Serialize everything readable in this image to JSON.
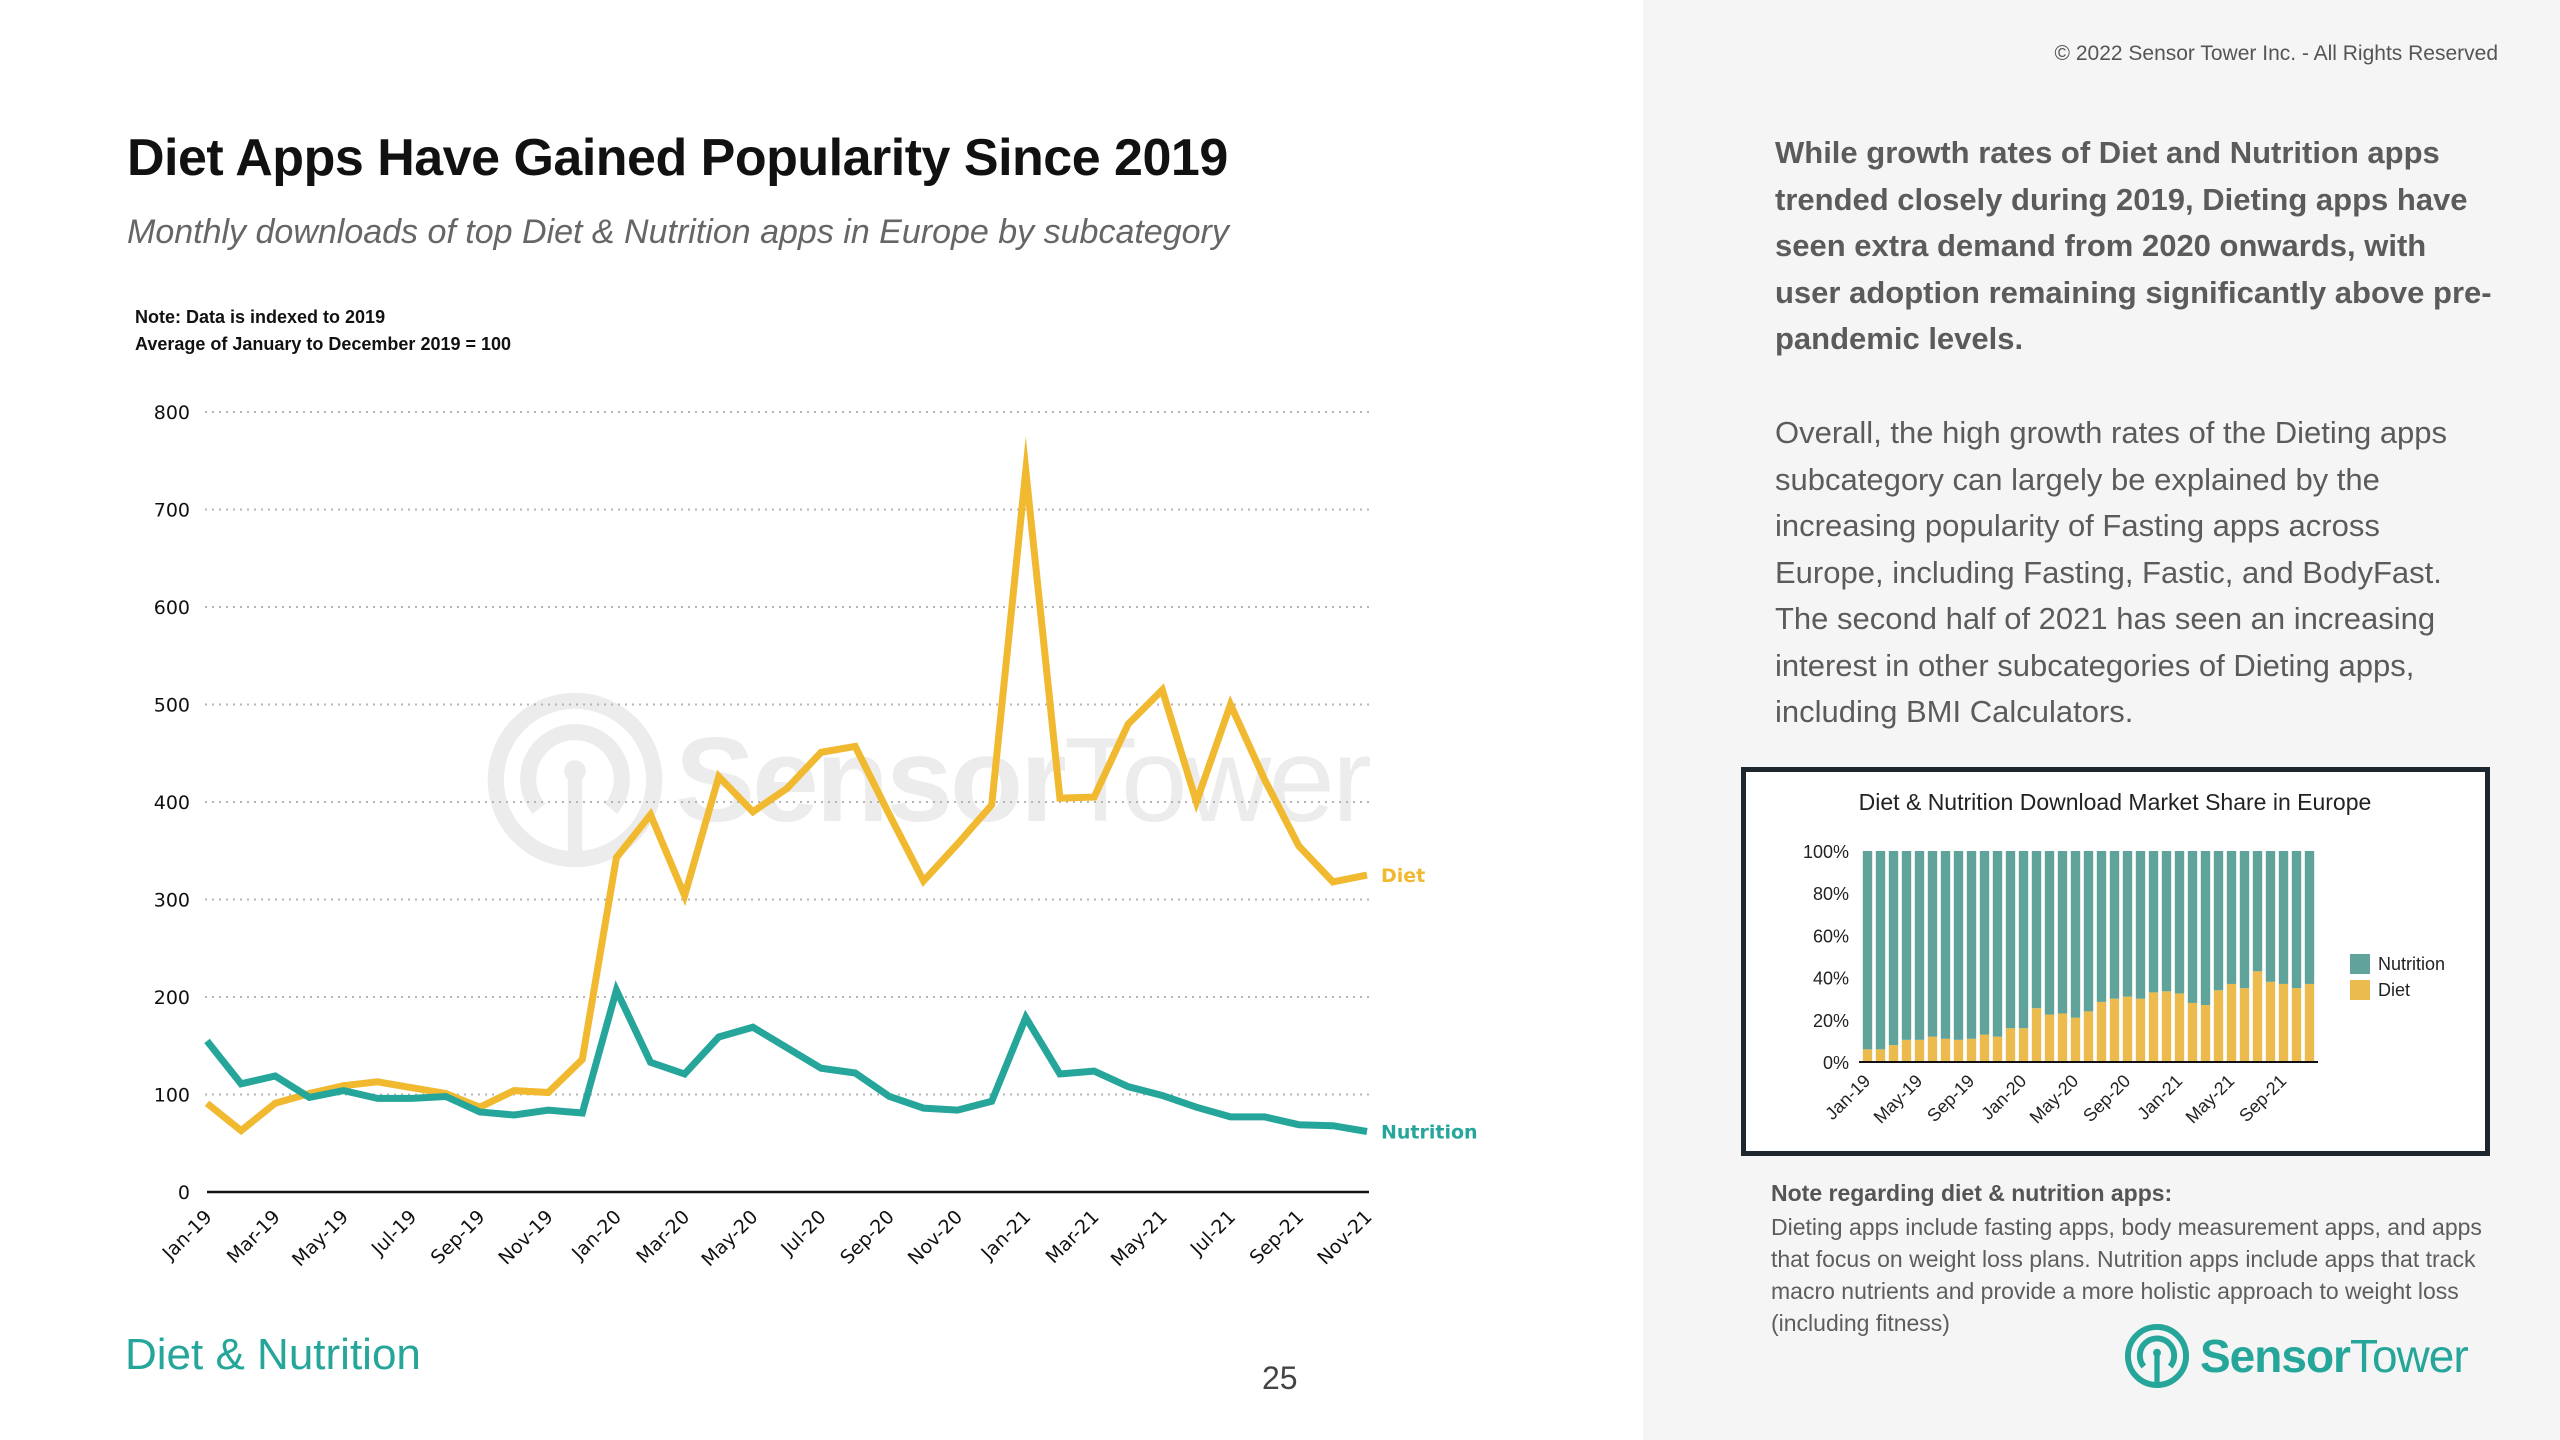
{
  "header": {
    "title": "Diet Apps Have Gained Popularity Since 2019",
    "subtitle": "Monthly downloads of top Diet & Nutrition apps in Europe by subcategory",
    "note_line1": "Note: Data is indexed to 2019",
    "note_line2": "Average of January to December 2019 = 100"
  },
  "footer": {
    "category": "Diet & Nutrition",
    "page_number": "25"
  },
  "right_panel": {
    "copyright": "© 2022 Sensor Tower Inc. - All Rights Reserved",
    "paragraph1": "While growth rates of Diet and Nutrition apps trended closely during 2019, Dieting apps have seen extra demand from 2020 onwards, with user adoption remaining significantly above pre-pandemic levels.",
    "paragraph2": "Overall, the high growth rates of the Dieting apps subcategory can largely be explained by the increasing popularity of Fasting apps across Europe, including Fasting, Fastic, and BodyFast. The second half of 2021 has seen an increasing interest in other subcategories of Dieting apps, including BMI Calculators.",
    "note_heading": "Note regarding diet & nutrition apps:",
    "note_body": "Dieting apps include fasting apps, body measurement apps, and apps that focus on weight loss plans. Nutrition apps include apps that track macro nutrients and provide a more holistic approach to weight loss (including fitness)",
    "logo_bold": "Sensor",
    "logo_regular": "Tower"
  },
  "watermark": {
    "bold": "Sensor",
    "regular": "Tower"
  },
  "colors": {
    "diet": "#f0b930",
    "nutrition": "#26a69a",
    "inset_diet": "#ebbb4e",
    "inset_nutrition": "#5fa39a",
    "brand": "#26a69a"
  },
  "chart_data": [
    {
      "type": "line",
      "title": "Diet Apps Have Gained Popularity Since 2019",
      "subtitle": "Monthly downloads of top Diet & Nutrition apps in Europe by subcategory",
      "xlabel": "",
      "ylabel": "",
      "ylim": [
        0,
        800
      ],
      "yticks": [
        0,
        100,
        200,
        300,
        400,
        500,
        600,
        700,
        800
      ],
      "grid": true,
      "x": [
        "Jan-19",
        "Feb-19",
        "Mar-19",
        "Apr-19",
        "May-19",
        "Jun-19",
        "Jul-19",
        "Aug-19",
        "Sep-19",
        "Oct-19",
        "Nov-19",
        "Dec-19",
        "Jan-20",
        "Feb-20",
        "Mar-20",
        "Apr-20",
        "May-20",
        "Jun-20",
        "Jul-20",
        "Aug-20",
        "Sep-20",
        "Oct-20",
        "Nov-20",
        "Dec-20",
        "Jan-21",
        "Feb-21",
        "Mar-21",
        "Apr-21",
        "May-21",
        "Jun-21",
        "Jul-21",
        "Aug-21",
        "Sep-21",
        "Oct-21",
        "Nov-21"
      ],
      "xtick_labels": [
        "Jan-19",
        "Mar-19",
        "May-19",
        "Jul-19",
        "Sep-19",
        "Nov-19",
        "Jan-20",
        "Mar-20",
        "May-20",
        "Jul-20",
        "Sep-20",
        "Nov-20",
        "Jan-21",
        "Mar-21",
        "May-21",
        "Jul-21",
        "Sep-21",
        "Nov-21"
      ],
      "series": [
        {
          "name": "Diet",
          "label": "Diet",
          "values": [
            91,
            63,
            91,
            101,
            109,
            113,
            107,
            101,
            87,
            104,
            102,
            136,
            343,
            387,
            304,
            426,
            390,
            414,
            451,
            457,
            387,
            319,
            357,
            397,
            740,
            404,
            405,
            480,
            515,
            400,
            500,
            423,
            355,
            318,
            325
          ]
        },
        {
          "name": "Nutrition",
          "label": "Nutrition",
          "values": [
            155,
            111,
            119,
            97,
            104,
            96,
            96,
            98,
            82,
            79,
            84,
            81,
            207,
            133,
            121,
            159,
            169,
            148,
            127,
            122,
            98,
            86,
            84,
            93,
            179,
            121,
            124,
            108,
            99,
            87,
            77,
            77,
            69,
            68,
            62
          ]
        }
      ],
      "legend": "inline-right"
    },
    {
      "type": "bar",
      "stacked": true,
      "title": "Diet & Nutrition Download Market Share in Europe",
      "ylim": [
        0,
        100
      ],
      "yticks": [
        "0%",
        "20%",
        "40%",
        "60%",
        "80%",
        "100%"
      ],
      "categories": [
        "Jan-19",
        "Feb-19",
        "Mar-19",
        "Apr-19",
        "May-19",
        "Jun-19",
        "Jul-19",
        "Aug-19",
        "Sep-19",
        "Oct-19",
        "Nov-19",
        "Dec-19",
        "Jan-20",
        "Feb-20",
        "Mar-20",
        "Apr-20",
        "May-20",
        "Jun-20",
        "Jul-20",
        "Aug-20",
        "Sep-20",
        "Oct-20",
        "Nov-20",
        "Dec-20",
        "Jan-21",
        "Feb-21",
        "Mar-21",
        "Apr-21",
        "May-21",
        "Jun-21",
        "Jul-21",
        "Aug-21",
        "Sep-21",
        "Oct-21",
        "Nov-21"
      ],
      "xtick_labels": [
        "Jan-19",
        "May-19",
        "Sep-19",
        "Jan-20",
        "May-20",
        "Sep-20",
        "Jan-21",
        "May-21",
        "Sep-21"
      ],
      "series": [
        {
          "name": "Diet",
          "values": [
            6,
            6,
            8,
            10.5,
            10.5,
            12,
            11,
            10.5,
            11,
            13,
            12,
            16,
            16,
            25.5,
            22.5,
            23,
            21,
            24,
            28.5,
            30,
            31,
            30,
            33,
            33.5,
            32.5,
            28,
            27,
            34,
            37,
            35,
            43,
            38,
            37,
            35,
            37
          ]
        },
        {
          "name": "Nutrition",
          "values": [
            94,
            94,
            92,
            89.5,
            89.5,
            88,
            89,
            89.5,
            89,
            87,
            88,
            84,
            84,
            74.5,
            77.5,
            77,
            79,
            76,
            71.5,
            70,
            69,
            70,
            67,
            66.5,
            67.5,
            72,
            73,
            66,
            63,
            65,
            57,
            62,
            63,
            65,
            63
          ]
        }
      ],
      "legend": [
        "Nutrition",
        "Diet"
      ],
      "legend_position": "right"
    }
  ]
}
